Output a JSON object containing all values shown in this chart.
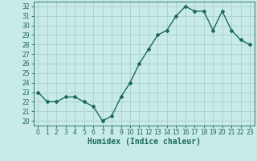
{
  "x": [
    0,
    1,
    2,
    3,
    4,
    5,
    6,
    7,
    8,
    9,
    10,
    11,
    12,
    13,
    14,
    15,
    16,
    17,
    18,
    19,
    20,
    21,
    22,
    23
  ],
  "y": [
    23,
    22,
    22,
    22.5,
    22.5,
    22,
    21.5,
    20,
    20.5,
    22.5,
    24,
    26,
    27.5,
    29,
    29.5,
    31,
    32,
    31.5,
    31.5,
    29.5,
    31.5,
    29.5,
    28.5,
    28
  ],
  "line_color": "#1a6b5a",
  "marker": "D",
  "marker_size": 2,
  "bg_color": "#c8eae8",
  "grid_color": "#aacfcc",
  "xlabel": "Humidex (Indice chaleur)",
  "ylim": [
    19.5,
    32.5
  ],
  "xlim": [
    -0.5,
    23.5
  ],
  "yticks": [
    20,
    21,
    22,
    23,
    24,
    25,
    26,
    27,
    28,
    29,
    30,
    31,
    32
  ],
  "xticks": [
    0,
    1,
    2,
    3,
    4,
    5,
    6,
    7,
    8,
    9,
    10,
    11,
    12,
    13,
    14,
    15,
    16,
    17,
    18,
    19,
    20,
    21,
    22,
    23
  ],
  "tick_fontsize": 5.5,
  "xlabel_fontsize": 7,
  "line_width": 1.0
}
